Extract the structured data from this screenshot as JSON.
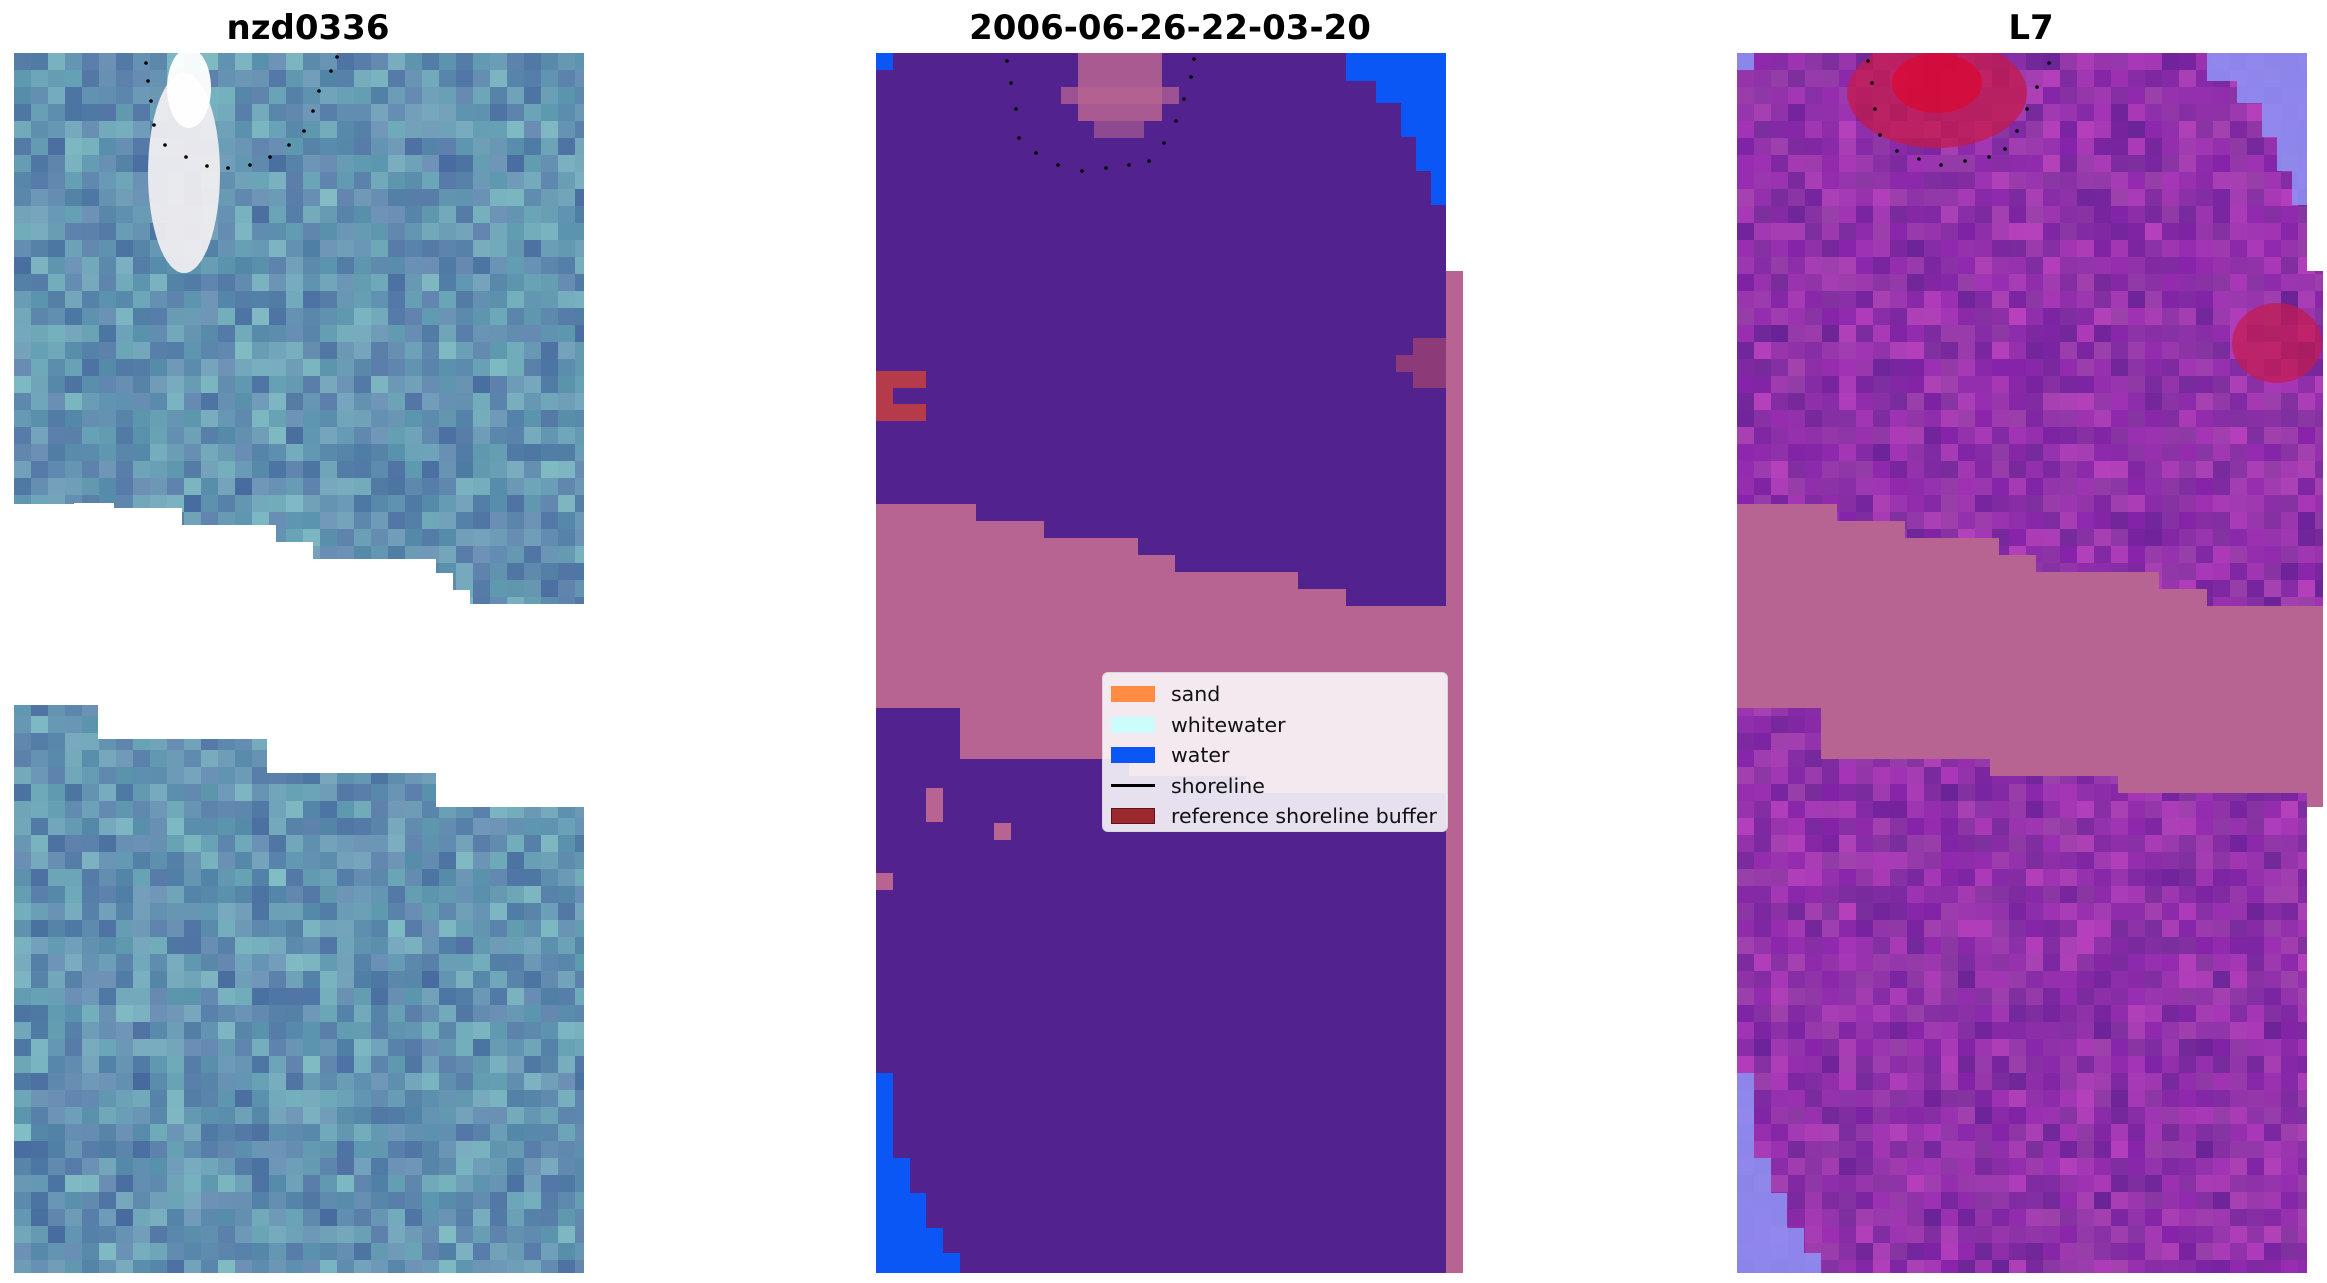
{
  "panels": {
    "rgb": {
      "title": "nzd0336"
    },
    "classification": {
      "title": "2006-06-26-22-03-20"
    },
    "mndwi": {
      "title": "L7"
    }
  },
  "legend": {
    "items": [
      {
        "key": "sand",
        "label": "sand",
        "color": "#ff8c42",
        "kind": "patch"
      },
      {
        "key": "whitewater",
        "label": "whitewater",
        "color": "#ccfdfd",
        "kind": "patch"
      },
      {
        "key": "water",
        "label": "water",
        "color": "#0a57f5",
        "kind": "patch"
      },
      {
        "key": "shoreline",
        "label": "shoreline",
        "color": "#000000",
        "kind": "line"
      },
      {
        "key": "reference-shoreline-buffer",
        "label": "reference shoreline buffer",
        "color": "#9b2a2f",
        "kind": "patch"
      }
    ]
  },
  "colors": {
    "land_purple": "#52238f",
    "water_blue": "#0a57f5",
    "no_data_band": "#b76492",
    "buffer_red": "#b53a4a",
    "rgb_base": "#5b7fb0",
    "index_base": "#8a3aa3",
    "index_hot": "#c41a4a"
  }
}
